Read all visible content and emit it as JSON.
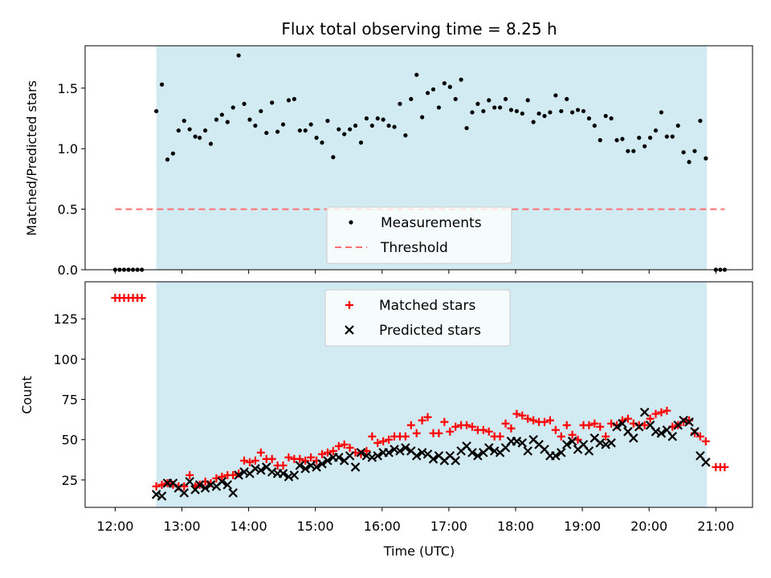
{
  "chart_data": [
    {
      "type": "scatter",
      "title": "Flux total observing time = 8.25 h",
      "ylabel": "Matched/Predicted stars",
      "xlabel": "",
      "xlim": [
        "11:33",
        "21:33"
      ],
      "ylim": [
        0,
        1.85
      ],
      "x_ticks": [
        "12:00",
        "13:00",
        "14:00",
        "15:00",
        "16:00",
        "17:00",
        "18:00",
        "19:00",
        "20:00",
        "21:00"
      ],
      "y_ticks": [
        "0.0",
        "0.5",
        "1.0",
        "1.5"
      ],
      "y_tick_values": [
        0,
        0.5,
        1.0,
        1.5
      ],
      "shaded_span": {
        "start": "12:37",
        "end": "20:52",
        "color": "#add8e6"
      },
      "legend": {
        "position": "lower center",
        "entries": [
          "Measurements",
          "Threshold"
        ]
      },
      "series": [
        {
          "name": "Measurements",
          "color": "#000000",
          "marker": "dot",
          "x": [
            "12:00",
            "12:04",
            "12:08",
            "12:12",
            "12:16",
            "12:20",
            "12:24",
            "12:37",
            "12:42",
            "12:47",
            "12:52",
            "12:57",
            "13:02",
            "13:07",
            "13:12",
            "13:16",
            "13:21",
            "13:26",
            "13:31",
            "13:36",
            "13:41",
            "13:46",
            "13:51",
            "13:56",
            "14:01",
            "14:06",
            "14:11",
            "14:16",
            "14:21",
            "14:26",
            "14:31",
            "14:36",
            "14:41",
            "14:46",
            "14:51",
            "14:56",
            "15:01",
            "15:06",
            "15:11",
            "15:16",
            "15:21",
            "15:26",
            "15:31",
            "15:36",
            "15:41",
            "15:46",
            "15:51",
            "15:56",
            "16:01",
            "16:06",
            "16:11",
            "16:16",
            "16:21",
            "16:26",
            "16:31",
            "16:36",
            "16:41",
            "16:46",
            "16:51",
            "16:56",
            "17:01",
            "17:06",
            "17:11",
            "17:16",
            "17:21",
            "17:26",
            "17:31",
            "17:36",
            "17:41",
            "17:46",
            "17:51",
            "17:56",
            "18:01",
            "18:06",
            "18:11",
            "18:16",
            "18:21",
            "18:26",
            "18:31",
            "18:36",
            "18:41",
            "18:46",
            "18:51",
            "18:56",
            "19:01",
            "19:06",
            "19:11",
            "19:16",
            "19:21",
            "19:26",
            "19:31",
            "19:36",
            "19:41",
            "19:46",
            "19:51",
            "19:56",
            "20:01",
            "20:06",
            "20:11",
            "20:16",
            "20:21",
            "20:26",
            "20:31",
            "20:36",
            "20:41",
            "20:46",
            "20:51",
            "21:00",
            "21:04",
            "21:08"
          ],
          "y": [
            0,
            0,
            0,
            0,
            0,
            0,
            0,
            1.31,
            1.53,
            0.91,
            0.96,
            1.15,
            1.23,
            1.16,
            1.1,
            1.09,
            1.15,
            1.04,
            1.24,
            1.28,
            1.22,
            1.34,
            1.77,
            1.37,
            1.24,
            1.19,
            1.31,
            1.13,
            1.38,
            1.14,
            1.2,
            1.4,
            1.41,
            1.15,
            1.15,
            1.2,
            1.09,
            1.05,
            1.23,
            0.93,
            1.16,
            1.12,
            1.16,
            1.19,
            1.05,
            1.25,
            1.19,
            1.25,
            1.24,
            1.19,
            1.18,
            1.37,
            1.11,
            1.41,
            1.61,
            1.26,
            1.46,
            1.49,
            1.34,
            1.54,
            1.51,
            1.41,
            1.57,
            1.17,
            1.3,
            1.37,
            1.31,
            1.4,
            1.34,
            1.34,
            1.41,
            1.32,
            1.31,
            1.29,
            1.4,
            1.22,
            1.29,
            1.27,
            1.3,
            1.44,
            1.31,
            1.41,
            1.3,
            1.32,
            1.31,
            1.25,
            1.19,
            1.07,
            1.27,
            1.25,
            1.07,
            1.08,
            0.98,
            0.98,
            1.09,
            1.02,
            1.09,
            1.15,
            1.3,
            1.1,
            1.1,
            1.19,
            0.97,
            0.89,
            0.98,
            1.23,
            0.92,
            0,
            0,
            0
          ]
        },
        {
          "name": "Threshold",
          "color": "#ff7070",
          "style": "dashed",
          "x": [
            "12:00",
            "21:08"
          ],
          "y": [
            0.5,
            0.5
          ]
        }
      ]
    },
    {
      "type": "scatter",
      "title": "",
      "xlabel": "Time (UTC)",
      "ylabel": "Count",
      "xlim": [
        "11:33",
        "21:33"
      ],
      "ylim": [
        8,
        148
      ],
      "x_ticks": [
        "12:00",
        "13:00",
        "14:00",
        "15:00",
        "16:00",
        "17:00",
        "18:00",
        "19:00",
        "20:00",
        "21:00"
      ],
      "y_ticks": [
        "25",
        "50",
        "75",
        "100",
        "125"
      ],
      "y_tick_values": [
        25,
        50,
        75,
        100,
        125
      ],
      "shaded_span": {
        "start": "12:37",
        "end": "20:52",
        "color": "#add8e6"
      },
      "legend": {
        "position": "upper center",
        "entries": [
          "Matched stars",
          "Predicted stars"
        ]
      },
      "series": [
        {
          "name": "Matched stars",
          "color": "#ff0000",
          "marker": "plus",
          "x": [
            "12:00",
            "12:04",
            "12:08",
            "12:12",
            "12:16",
            "12:20",
            "12:24",
            "12:37",
            "12:42",
            "12:47",
            "12:52",
            "12:57",
            "13:02",
            "13:07",
            "13:12",
            "13:16",
            "13:21",
            "13:26",
            "13:31",
            "13:36",
            "13:41",
            "13:46",
            "13:51",
            "13:56",
            "14:01",
            "14:06",
            "14:11",
            "14:16",
            "14:21",
            "14:26",
            "14:31",
            "14:36",
            "14:41",
            "14:46",
            "14:51",
            "14:56",
            "15:01",
            "15:06",
            "15:11",
            "15:16",
            "15:21",
            "15:26",
            "15:31",
            "15:36",
            "15:41",
            "15:46",
            "15:51",
            "15:56",
            "16:01",
            "16:06",
            "16:11",
            "16:16",
            "16:21",
            "16:26",
            "16:31",
            "16:36",
            "16:41",
            "16:46",
            "16:51",
            "16:56",
            "17:01",
            "17:06",
            "17:11",
            "17:16",
            "17:21",
            "17:26",
            "17:31",
            "17:36",
            "17:41",
            "17:46",
            "17:51",
            "17:56",
            "18:01",
            "18:06",
            "18:11",
            "18:16",
            "18:21",
            "18:26",
            "18:31",
            "18:36",
            "18:41",
            "18:46",
            "18:51",
            "18:56",
            "19:01",
            "19:06",
            "19:11",
            "19:16",
            "19:21",
            "19:26",
            "19:31",
            "19:36",
            "19:41",
            "19:46",
            "19:51",
            "19:56",
            "20:01",
            "20:06",
            "20:11",
            "20:16",
            "20:21",
            "20:26",
            "20:31",
            "20:36",
            "20:41",
            "20:46",
            "20:51",
            "21:00",
            "21:04",
            "21:08"
          ],
          "y": [
            138,
            138,
            138,
            138,
            138,
            138,
            138,
            21,
            22,
            23,
            22,
            21,
            21,
            28,
            21,
            22,
            24,
            23,
            26,
            27,
            28,
            28,
            29,
            37,
            36,
            37,
            42,
            38,
            38,
            34,
            34,
            39,
            38,
            38,
            37,
            39,
            37,
            41,
            42,
            43,
            46,
            47,
            45,
            42,
            41,
            43,
            52,
            48,
            49,
            50,
            52,
            52,
            52,
            59,
            54,
            62,
            64,
            54,
            54,
            61,
            55,
            58,
            59,
            59,
            58,
            56,
            56,
            55,
            52,
            52,
            60,
            57,
            66,
            65,
            63,
            62,
            61,
            61,
            62,
            56,
            52,
            59,
            53,
            50,
            59,
            59,
            60,
            58,
            52,
            60,
            59,
            62,
            63,
            60,
            59,
            59,
            63,
            66,
            67,
            68,
            58,
            59,
            61,
            62,
            54,
            52,
            49,
            33,
            33,
            33
          ]
        },
        {
          "name": "Predicted stars",
          "color": "#000000",
          "marker": "x",
          "x": [
            "12:37",
            "12:42",
            "12:47",
            "12:52",
            "12:57",
            "13:02",
            "13:07",
            "13:12",
            "13:16",
            "13:21",
            "13:26",
            "13:31",
            "13:36",
            "13:41",
            "13:46",
            "13:51",
            "13:56",
            "14:01",
            "14:06",
            "14:11",
            "14:16",
            "14:21",
            "14:26",
            "14:31",
            "14:36",
            "14:41",
            "14:46",
            "14:51",
            "14:56",
            "15:01",
            "15:06",
            "15:11",
            "15:16",
            "15:21",
            "15:26",
            "15:31",
            "15:36",
            "15:41",
            "15:46",
            "15:51",
            "15:56",
            "16:01",
            "16:06",
            "16:11",
            "16:16",
            "16:21",
            "16:26",
            "16:31",
            "16:36",
            "16:41",
            "16:46",
            "16:51",
            "16:56",
            "17:01",
            "17:06",
            "17:11",
            "17:16",
            "17:21",
            "17:26",
            "17:31",
            "17:36",
            "17:41",
            "17:46",
            "17:51",
            "17:56",
            "18:01",
            "18:06",
            "18:11",
            "18:16",
            "18:21",
            "18:26",
            "18:31",
            "18:36",
            "18:41",
            "18:46",
            "18:51",
            "18:56",
            "19:01",
            "19:06",
            "19:11",
            "19:16",
            "19:21",
            "19:26",
            "19:31",
            "19:36",
            "19:41",
            "19:46",
            "19:51",
            "19:56",
            "20:01",
            "20:06",
            "20:11",
            "20:16",
            "20:21",
            "20:26",
            "20:31",
            "20:36",
            "20:41",
            "20:46",
            "20:51"
          ],
          "y": [
            16,
            15,
            23,
            23,
            20,
            17,
            24,
            19,
            22,
            20,
            22,
            21,
            24,
            22,
            17,
            28,
            30,
            29,
            32,
            31,
            33,
            30,
            29,
            29,
            27,
            28,
            34,
            32,
            34,
            33,
            35,
            37,
            39,
            39,
            37,
            40,
            33,
            42,
            40,
            39,
            40,
            42,
            42,
            44,
            43,
            45,
            43,
            40,
            42,
            41,
            38,
            40,
            37,
            40,
            37,
            43,
            46,
            42,
            40,
            42,
            45,
            43,
            42,
            45,
            49,
            49,
            48,
            43,
            50,
            47,
            44,
            40,
            40,
            42,
            47,
            49,
            44,
            47,
            43,
            51,
            48,
            47,
            48,
            58,
            60,
            55,
            51,
            58,
            67,
            59,
            55,
            54,
            56,
            52,
            59,
            62,
            61,
            55,
            40,
            36
          ]
        }
      ]
    }
  ]
}
